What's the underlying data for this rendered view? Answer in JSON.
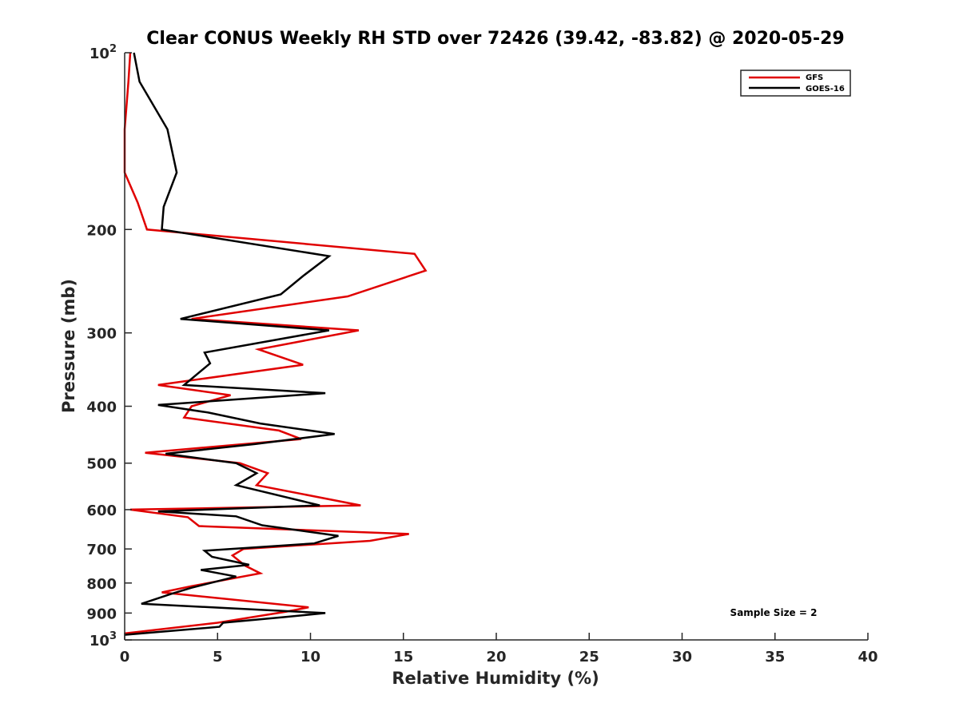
{
  "chart_data": {
    "type": "line",
    "title": "Clear CONUS Weekly RH STD over 72426 (39.42, -83.82) @ 2020-05-29",
    "xlabel": "Relative Humidity (%)",
    "ylabel": "Pressure (mb)",
    "xlim": [
      0,
      40
    ],
    "ylim": [
      100,
      1000
    ],
    "yscale": "log",
    "y_reversed": true,
    "grid": false,
    "x_ticks": [
      0,
      5,
      10,
      15,
      20,
      25,
      30,
      35,
      40
    ],
    "x_tick_labels": [
      "0",
      "5",
      "10",
      "15",
      "20",
      "25",
      "30",
      "35",
      "40"
    ],
    "y_ticks": [
      100,
      200,
      300,
      400,
      500,
      600,
      700,
      800,
      900,
      1000
    ],
    "y_tick_labels": [
      {
        "base": "10",
        "exp": "2"
      },
      {
        "base": "200",
        "exp": ""
      },
      {
        "base": "300",
        "exp": ""
      },
      {
        "base": "400",
        "exp": ""
      },
      {
        "base": "500",
        "exp": ""
      },
      {
        "base": "600",
        "exp": ""
      },
      {
        "base": "700",
        "exp": ""
      },
      {
        "base": "800",
        "exp": ""
      },
      {
        "base": "900",
        "exp": ""
      },
      {
        "base": "10",
        "exp": "3"
      }
    ],
    "legend_position": "top-right",
    "annotation": "Sample Size = 2",
    "series": [
      {
        "name": "GFS",
        "color": "#e00000",
        "x": [
          0.3,
          0.2,
          0.0,
          0.0,
          0.7,
          1.2,
          15.6,
          16.2,
          12.0,
          3.6,
          12.6,
          7.2,
          9.6,
          1.8,
          5.7,
          3.6,
          3.2,
          8.3,
          9.5,
          1.1,
          6.2,
          7.7,
          7.1,
          12.7,
          0.3,
          3.4,
          4.0,
          15.3,
          13.2,
          6.4,
          5.8,
          6.5,
          7.3,
          3.6,
          2.0,
          9.9,
          8.7,
          5.0,
          0.0
        ],
        "y": [
          100,
          112,
          135,
          160,
          180,
          200,
          220,
          235,
          260,
          284,
          297,
          320,
          340,
          368,
          383,
          400,
          418,
          440,
          455,
          480,
          500,
          520,
          545,
          590,
          600,
          618,
          640,
          660,
          678,
          700,
          718,
          748,
          770,
          810,
          830,
          880,
          895,
          935,
          975
        ]
      },
      {
        "name": "GOES-16",
        "color": "#000000",
        "x": [
          0.5,
          0.8,
          2.3,
          2.8,
          2.1,
          2.0,
          11.0,
          9.6,
          8.4,
          3.0,
          11.0,
          4.3,
          4.6,
          3.2,
          10.8,
          1.8,
          4.5,
          7.3,
          11.3,
          7.0,
          2.2,
          6.0,
          7.1,
          6.0,
          10.5,
          1.8,
          6.0,
          7.4,
          11.5,
          10.2,
          4.3,
          4.7,
          6.7,
          4.1,
          6.0,
          3.6,
          2.5,
          0.9,
          10.8,
          8.5,
          5.3,
          5.1,
          0.0
        ],
        "y": [
          100,
          112,
          135,
          160,
          183,
          200,
          222,
          240,
          258,
          284,
          297,
          324,
          338,
          368,
          380,
          398,
          410,
          428,
          446,
          464,
          482,
          500,
          520,
          545,
          590,
          604,
          616,
          638,
          665,
          685,
          705,
          722,
          745,
          760,
          780,
          815,
          835,
          868,
          900,
          915,
          935,
          950,
          980
        ]
      }
    ]
  }
}
